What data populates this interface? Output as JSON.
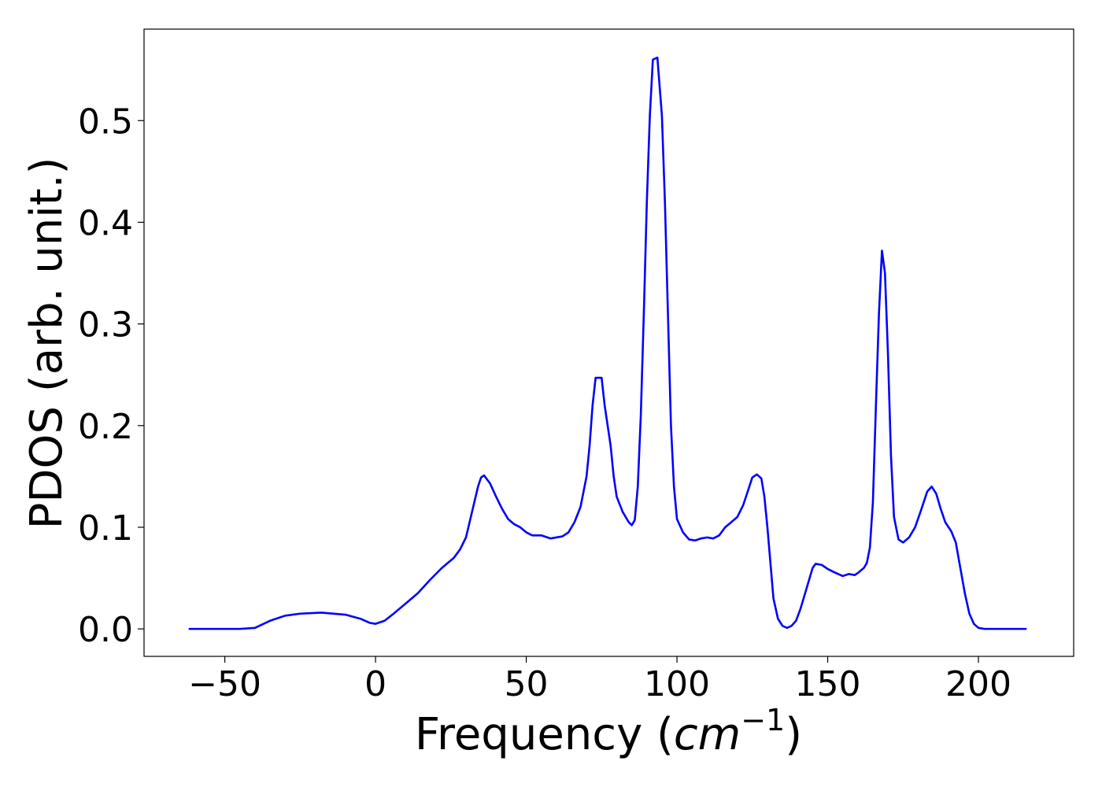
{
  "chart_data": {
    "type": "line",
    "xlabel": [
      "Frequency (",
      "cm",
      "−1",
      ")"
    ],
    "ylabel": "PDOS (arb. unit.)",
    "xlim": [
      -76.8,
      231.6
    ],
    "ylim": [
      -0.027,
      0.59
    ],
    "xticks": [
      {
        "value": -50,
        "label": "−50"
      },
      0,
      50,
      100,
      150,
      200
    ],
    "yticks": [
      {
        "value": 0,
        "label": "0.0"
      },
      0.1,
      0.2,
      0.3,
      0.4,
      0.5
    ],
    "grid": false,
    "series": [
      {
        "color": "#0000ff",
        "x": [
          -62,
          -45,
          -40,
          -35,
          -30,
          -25,
          -18,
          -10,
          -5,
          -2,
          0,
          3,
          6,
          10,
          14,
          18,
          22,
          26,
          28,
          30,
          32,
          34,
          35,
          36,
          38,
          40,
          42,
          44,
          46,
          48,
          50,
          52,
          55,
          58,
          62,
          64,
          66,
          68,
          70,
          71,
          72,
          73,
          75,
          76,
          78,
          79,
          80,
          82,
          84,
          85,
          86,
          87,
          88,
          89,
          90,
          91,
          92,
          93.5,
          95,
          96,
          97,
          98,
          99,
          100,
          102,
          104,
          106,
          108,
          110,
          112,
          114,
          116,
          118,
          120,
          122,
          124,
          125,
          126.5,
          128,
          129,
          130,
          131,
          132,
          133.5,
          135,
          136.5,
          138,
          139.5,
          141,
          143,
          145,
          146,
          148,
          150,
          152,
          155,
          157,
          159,
          160,
          162,
          163,
          164,
          165,
          166,
          167,
          168,
          169,
          170,
          171,
          172,
          173.5,
          175,
          177,
          179,
          181,
          183,
          184.5,
          186,
          187.5,
          189,
          191,
          192.5,
          194,
          195.5,
          197,
          198.5,
          200,
          202,
          216
        ],
        "values": [
          0,
          0,
          0.001,
          0.008,
          0.013,
          0.015,
          0.016,
          0.014,
          0.01,
          0.006,
          0.005,
          0.008,
          0.015,
          0.025,
          0.035,
          0.048,
          0.06,
          0.07,
          0.078,
          0.09,
          0.115,
          0.14,
          0.149,
          0.151,
          0.143,
          0.13,
          0.118,
          0.108,
          0.103,
          0.1,
          0.095,
          0.092,
          0.092,
          0.089,
          0.091,
          0.095,
          0.105,
          0.12,
          0.15,
          0.18,
          0.22,
          0.247,
          0.247,
          0.22,
          0.18,
          0.15,
          0.13,
          0.115,
          0.105,
          0.102,
          0.107,
          0.14,
          0.21,
          0.31,
          0.42,
          0.505,
          0.56,
          0.562,
          0.505,
          0.42,
          0.31,
          0.2,
          0.14,
          0.108,
          0.095,
          0.088,
          0.087,
          0.089,
          0.09,
          0.089,
          0.092,
          0.1,
          0.105,
          0.11,
          0.122,
          0.14,
          0.149,
          0.152,
          0.148,
          0.13,
          0.1,
          0.065,
          0.03,
          0.01,
          0.003,
          0.001,
          0.003,
          0.008,
          0.02,
          0.04,
          0.06,
          0.064,
          0.063,
          0.059,
          0.056,
          0.052,
          0.054,
          0.053,
          0.055,
          0.06,
          0.065,
          0.08,
          0.125,
          0.22,
          0.31,
          0.372,
          0.35,
          0.27,
          0.17,
          0.11,
          0.088,
          0.085,
          0.09,
          0.1,
          0.117,
          0.135,
          0.14,
          0.133,
          0.118,
          0.105,
          0.096,
          0.085,
          0.06,
          0.035,
          0.015,
          0.005,
          0.001,
          0,
          0
        ]
      }
    ]
  }
}
